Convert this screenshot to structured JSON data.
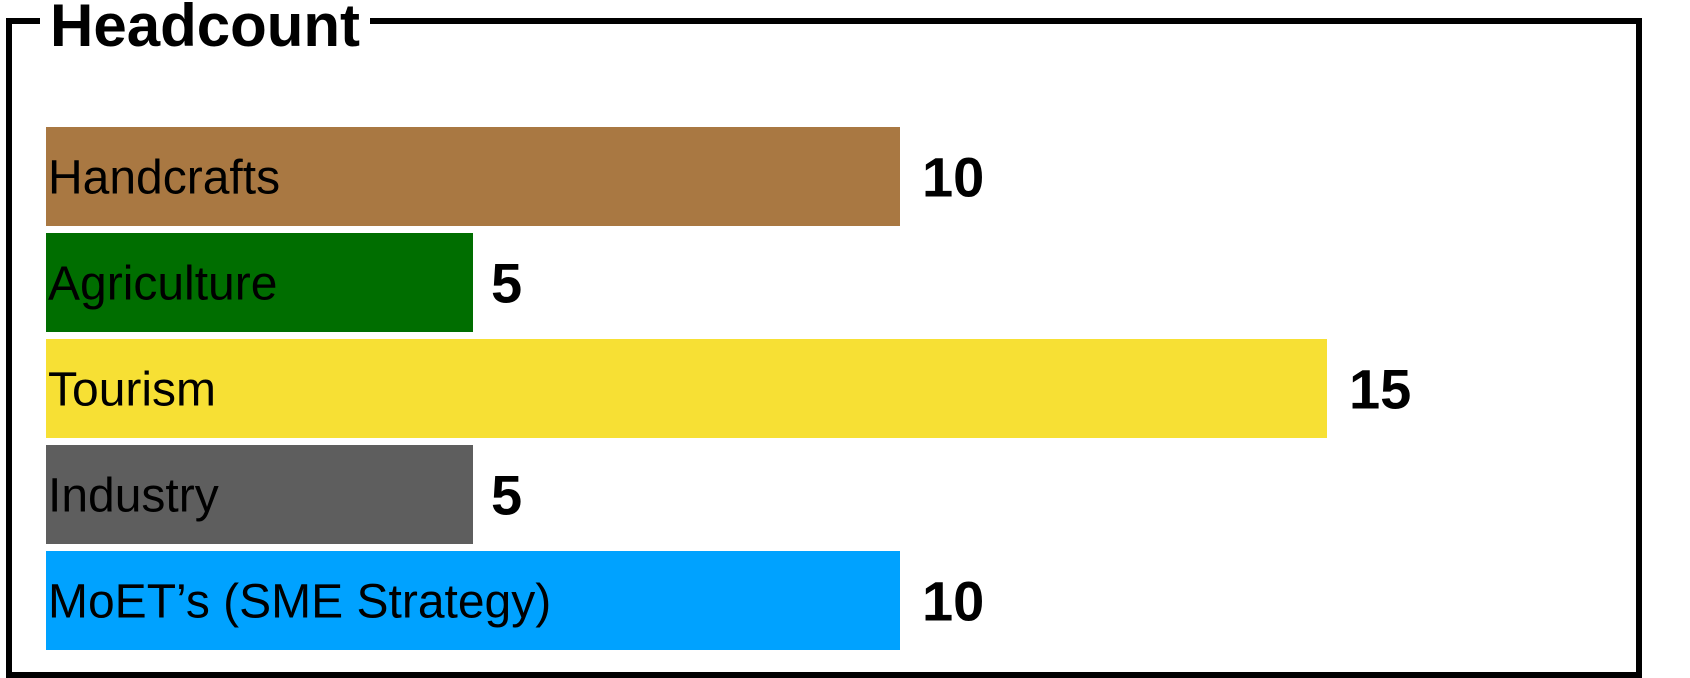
{
  "chart_data": {
    "type": "bar",
    "orientation": "horizontal",
    "title": "Headcount",
    "categories": [
      "Handcrafts",
      "Agriculture",
      "Tourism",
      "Industry",
      "MoET’s (SME Strategy)"
    ],
    "values": [
      10,
      5,
      15,
      5,
      10
    ],
    "colors": [
      "#A97842",
      "#006E00",
      "#F7E034",
      "#5E5E5E",
      "#00A2FF"
    ],
    "xlim": [
      0,
      15
    ],
    "grid": false,
    "legend": "none"
  }
}
